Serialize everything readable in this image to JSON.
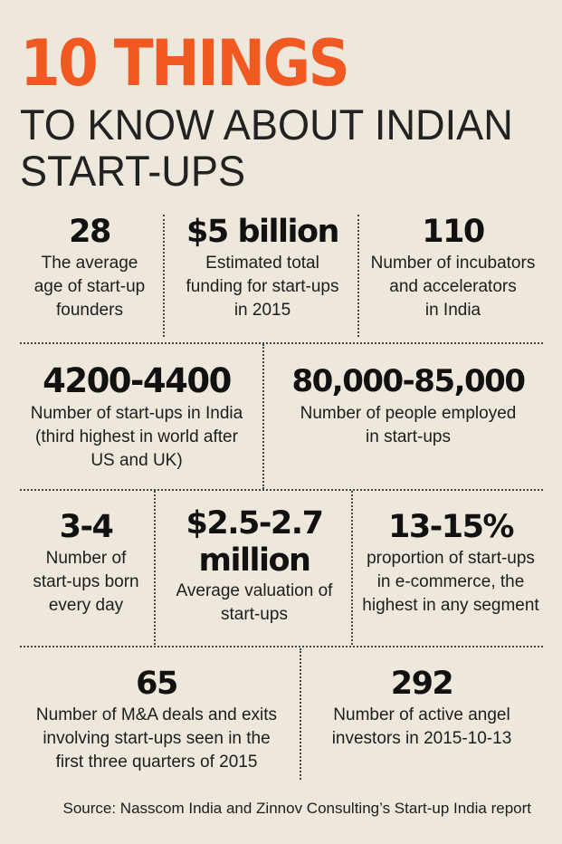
{
  "header": {
    "title": "10 THINGS",
    "subtitle_line1": "TO KNOW ABOUT INDIAN",
    "subtitle_line2": "START-UPS"
  },
  "stats": [
    {
      "value": "28",
      "desc": [
        "The average",
        "age of start-up",
        "founders"
      ]
    },
    {
      "value": "$5 billion",
      "desc": [
        "Estimated total",
        "funding for start-ups",
        "in 2015"
      ]
    },
    {
      "value": "110",
      "desc": [
        "Number of incubators",
        "and accelerators",
        "in India"
      ]
    },
    {
      "value": "4200-4400",
      "desc": [
        "Number of start-ups in India",
        "(third highest in world after",
        "US and UK)"
      ]
    },
    {
      "value": "80,000-85,000",
      "desc": [
        "Number of people employed",
        "in start-ups"
      ]
    },
    {
      "value": "3-4",
      "desc": [
        "Number of",
        "start-ups born",
        "every day"
      ]
    },
    {
      "value_lines": [
        "$2.5-2.7",
        "million"
      ],
      "desc": [
        "Average valuation of",
        "start-ups"
      ]
    },
    {
      "value": "13-15%",
      "desc": [
        "proportion of start-ups",
        "in e-commerce, the",
        "highest in any segment"
      ]
    },
    {
      "value": "65",
      "desc": [
        "Number of M&A deals and exits",
        "involving start-ups seen in the",
        "first three quarters of 2015"
      ]
    },
    {
      "value": "292",
      "desc": [
        "Number of active angel",
        "investors in 2015-10-13"
      ]
    }
  ],
  "footer": {
    "source": "Source: Nasscom India and Zinnov Consulting’s Start-up India report"
  },
  "colors": {
    "accent": "#f05a22",
    "background": "#eee8dc",
    "text": "#151515"
  }
}
